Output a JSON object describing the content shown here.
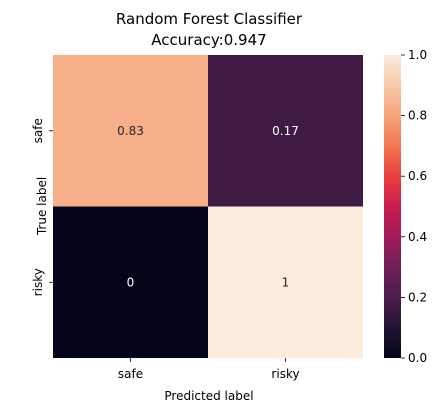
{
  "chart_data": {
    "type": "heatmap",
    "title_line1": "Random Forest Classifier",
    "title_line2": "Accuracy:0.947",
    "xlabel": "Predicted label",
    "ylabel": "True label",
    "x_categories": [
      "safe",
      "risky"
    ],
    "y_categories": [
      "safe",
      "risky"
    ],
    "values": [
      [
        0.83,
        0.17
      ],
      [
        0,
        1
      ]
    ],
    "annotations": [
      [
        "0.83",
        "0.17"
      ],
      [
        "0",
        "1"
      ]
    ],
    "colorbar": {
      "range": [
        0.0,
        1.0
      ],
      "ticks": [
        "0.0",
        "0.2",
        "0.4",
        "0.6",
        "0.8",
        "1.0"
      ],
      "colormap": "rocket"
    },
    "grid": false,
    "legend": "colorbar-right"
  }
}
